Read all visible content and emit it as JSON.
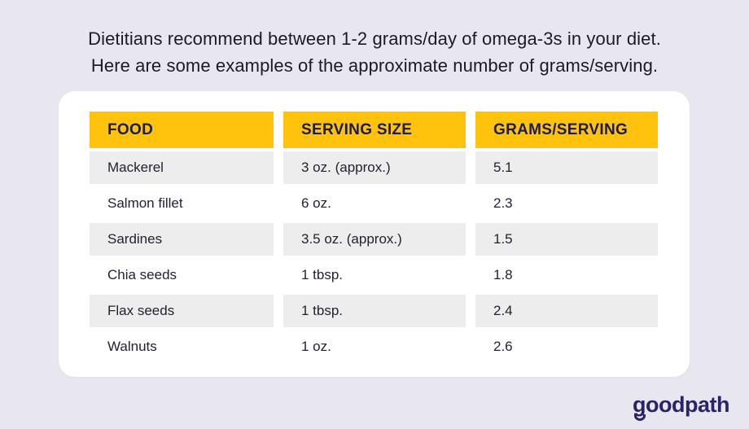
{
  "title": {
    "line1": "Dietitians recommend between 1-2 grams/day of omega-3s in your diet.",
    "line2": "Here are some examples of the approximate number of grams/serving."
  },
  "chart_data": {
    "type": "table",
    "title": "Dietitians recommend between 1-2 grams/day of omega-3s in your diet. Here are some examples of the approximate number of grams/serving.",
    "columns": [
      "FOOD",
      "SERVING SIZE",
      "GRAMS/SERVING"
    ],
    "rows": [
      [
        "Mackerel",
        "3 oz. (approx.)",
        "5.1"
      ],
      [
        "Salmon fillet",
        "6 oz.",
        "2.3"
      ],
      [
        "Sardines",
        "3.5 oz. (approx.)",
        "1.5"
      ],
      [
        "Chia seeds",
        "1 tbsp.",
        "1.8"
      ],
      [
        "Flax seeds",
        "1 tbsp.",
        "2.4"
      ],
      [
        "Walnuts",
        "1 oz.",
        "2.6"
      ]
    ]
  },
  "footer": {
    "logo_text": "goodpath"
  },
  "colors": {
    "background": "#E8E7EF",
    "card": "#FFFFFF",
    "header_yellow": "#FFC20D",
    "header_text_navy": "#1B1B4D",
    "row_alt_gray": "#EEEDEE",
    "body_text": "#23222F",
    "logo_navy": "#2B2367"
  }
}
